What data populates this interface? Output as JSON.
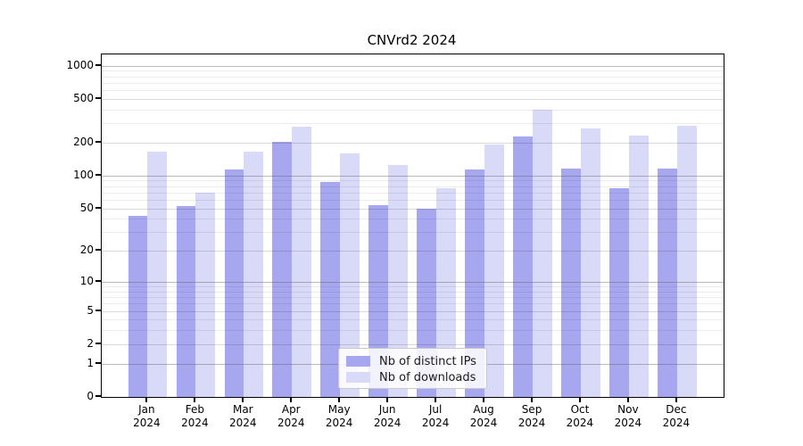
{
  "chart_data": {
    "type": "bar",
    "title": "CNVrd2 2024",
    "categories": [
      "Jan",
      "Feb",
      "Mar",
      "Apr",
      "May",
      "Jun",
      "Jul",
      "Aug",
      "Sep",
      "Oct",
      "Nov",
      "Dec"
    ],
    "category_year": "2024",
    "series": [
      {
        "name": "Nb of distinct IPs",
        "color": "#a7a7f0",
        "values": [
          43,
          53,
          114,
          204,
          87,
          54,
          50,
          113,
          228,
          116,
          77,
          115
        ]
      },
      {
        "name": "Nb of downloads",
        "color": "#d9d9f8",
        "values": [
          164,
          70,
          166,
          277,
          159,
          126,
          77,
          191,
          398,
          269,
          230,
          282
        ]
      }
    ],
    "y_axis": {
      "scale": "log10(1+x)",
      "ticks": [
        0,
        1,
        2,
        5,
        10,
        20,
        50,
        100,
        200,
        500,
        1000
      ],
      "major_gridlines": [
        1,
        10,
        100,
        1000
      ],
      "ylim": [
        0,
        1100
      ]
    },
    "xlabel": "",
    "ylabel": "",
    "grid": true,
    "legend_position": "bottom-center",
    "colors": {
      "frame": "#000000",
      "background": "#ffffff",
      "major_grid": "#b5b5b5",
      "minor_grid": "#ececec"
    }
  }
}
